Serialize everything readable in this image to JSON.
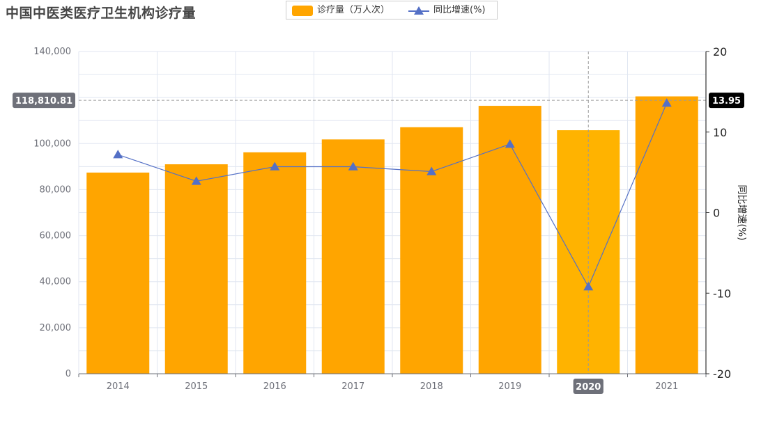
{
  "title": "中国中医类医疗卫生机构诊疗量",
  "legend": {
    "bar_label": "诊疗量（万人次）",
    "line_label": "同比增速(%)"
  },
  "colors": {
    "bar": "#FFA500",
    "bar_highlight": "#FFB300",
    "line": "#5470C6",
    "grid": "#E0E6F1",
    "pointer": "#6E7079",
    "right_badge": "#000000"
  },
  "chart_data": {
    "type": "bar",
    "categories": [
      "2014",
      "2015",
      "2016",
      "2017",
      "2018",
      "2019",
      "2020",
      "2021"
    ],
    "series": [
      {
        "name": "诊疗量（万人次）",
        "type": "bar",
        "axis": "left",
        "values": [
          87400,
          91000,
          96200,
          101800,
          107100,
          116400,
          105800,
          120500
        ]
      },
      {
        "name": "同比增速(%)",
        "type": "line",
        "axis": "right",
        "values": [
          7.2,
          3.9,
          5.7,
          5.7,
          5.1,
          8.5,
          -9.2,
          13.6
        ]
      }
    ],
    "y_left": {
      "min": 0,
      "max": 140000,
      "ticks": [
        "0",
        "20,000",
        "40,000",
        "60,000",
        "80,000",
        "100,000",
        "120,000",
        "140,000"
      ]
    },
    "y_right": {
      "min": -20,
      "max": 20,
      "ticks": [
        "-20",
        "-10",
        "0",
        "10",
        "20"
      ],
      "label": "同比增速(%)"
    },
    "pointer": {
      "category": "2020",
      "left_value_label": "118,810.81",
      "right_value_label": "13.95",
      "left_value": 118810.81
    }
  }
}
